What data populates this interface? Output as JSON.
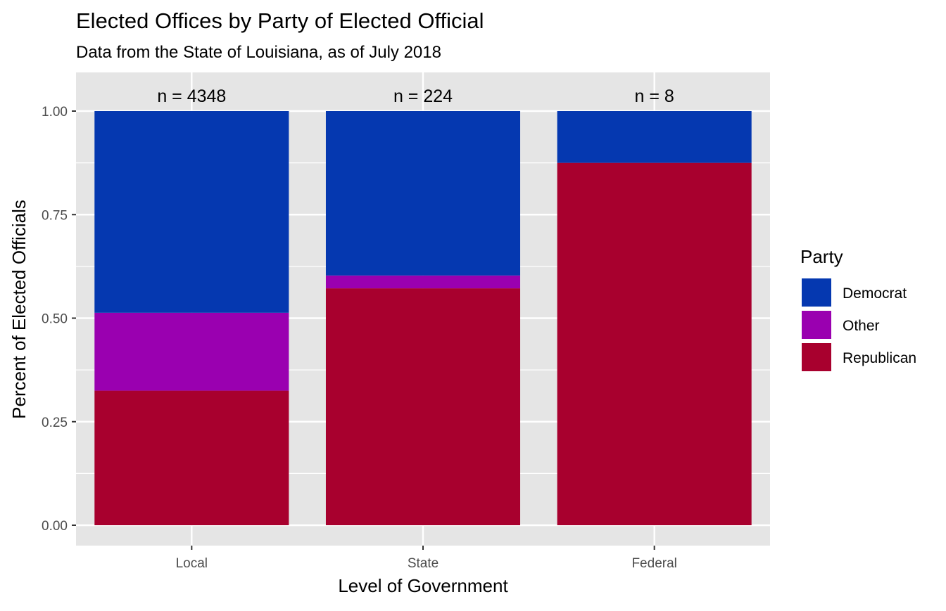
{
  "chart_data": {
    "type": "bar",
    "stacked": true,
    "title": "Elected Offices by Party of Elected Official",
    "subtitle": "Data from the State of Louisiana, as of July 2018",
    "xlabel": "Level of Government",
    "ylabel": "Percent of Elected Officials",
    "ylim": [
      0,
      1
    ],
    "yticks": [
      "0.00",
      "0.25",
      "0.50",
      "0.75",
      "1.00"
    ],
    "categories": [
      "Local",
      "State",
      "Federal"
    ],
    "annotations": [
      "n = 4348",
      "n = 224",
      "n = 8"
    ],
    "legend_title": "Party",
    "legend_position": "right",
    "grid": true,
    "series": [
      {
        "name": "Republican",
        "color": "#A8002E",
        "values": [
          0.325,
          0.572,
          0.875
        ]
      },
      {
        "name": "Other",
        "color": "#9A00B0",
        "values": [
          0.188,
          0.031,
          0.0
        ]
      },
      {
        "name": "Democrat",
        "color": "#0538B0",
        "values": [
          0.487,
          0.397,
          0.125
        ]
      }
    ],
    "legend_order": [
      "Democrat",
      "Other",
      "Republican"
    ]
  }
}
